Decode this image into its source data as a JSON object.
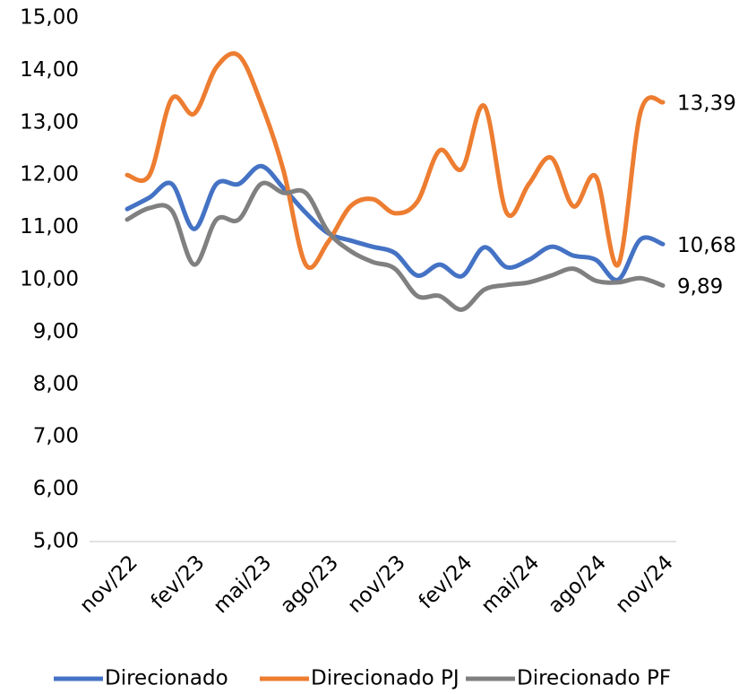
{
  "chart_data": {
    "type": "line",
    "categories": [
      "nov/22",
      null,
      null,
      "fev/23",
      null,
      null,
      "mai/23",
      null,
      null,
      "ago/23",
      null,
      null,
      "nov/23",
      null,
      null,
      "fev/24",
      null,
      null,
      "mai/24",
      null,
      null,
      "ago/24",
      null,
      null,
      "nov/24"
    ],
    "series": [
      {
        "name": "Direcionado",
        "color": "#4472c4",
        "values": [
          11.35,
          11.57,
          11.83,
          10.97,
          11.83,
          11.83,
          12.17,
          11.75,
          11.28,
          10.89,
          10.75,
          10.63,
          10.51,
          10.08,
          10.29,
          10.07,
          10.62,
          10.24,
          10.38,
          10.63,
          10.46,
          10.38,
          10.0,
          10.77,
          10.68
        ],
        "value_labels": [
          null,
          null,
          null,
          null,
          null,
          null,
          null,
          null,
          null,
          null,
          null,
          null,
          null,
          null,
          null,
          null,
          null,
          null,
          null,
          null,
          null,
          null,
          null,
          null,
          "10,68"
        ]
      },
      {
        "name": "Direcionado PJ",
        "color": "#ed7d31",
        "values": [
          12.0,
          12.0,
          13.46,
          13.17,
          14.06,
          14.28,
          13.37,
          12.09,
          10.29,
          10.72,
          11.4,
          11.54,
          11.27,
          11.49,
          12.47,
          12.12,
          13.32,
          11.28,
          11.83,
          12.33,
          11.4,
          11.97,
          10.29,
          13.2,
          13.39
        ],
        "value_labels": [
          null,
          null,
          null,
          null,
          null,
          null,
          null,
          null,
          null,
          null,
          null,
          null,
          null,
          null,
          null,
          null,
          null,
          null,
          null,
          null,
          null,
          null,
          null,
          null,
          "13,39"
        ]
      },
      {
        "name": "Direcionado PF",
        "color": "#808080",
        "values": [
          11.15,
          11.37,
          11.32,
          10.29,
          11.15,
          11.15,
          11.83,
          11.66,
          11.66,
          10.92,
          10.55,
          10.34,
          10.21,
          9.69,
          9.69,
          9.43,
          9.81,
          9.9,
          9.95,
          10.08,
          10.21,
          9.98,
          9.95,
          10.03,
          9.89
        ],
        "value_labels": [
          null,
          null,
          null,
          null,
          null,
          null,
          null,
          null,
          null,
          null,
          null,
          null,
          null,
          null,
          null,
          null,
          null,
          null,
          null,
          null,
          null,
          null,
          null,
          null,
          "9,89"
        ]
      }
    ],
    "ylim": [
      5,
      15
    ],
    "yticks": [
      {
        "value": 5,
        "label": "5,00"
      },
      {
        "value": 6,
        "label": "6,00"
      },
      {
        "value": 7,
        "label": "7,00"
      },
      {
        "value": 8,
        "label": "8,00"
      },
      {
        "value": 9,
        "label": "9,00"
      },
      {
        "value": 10,
        "label": "10,00"
      },
      {
        "value": 11,
        "label": "11,00"
      },
      {
        "value": 12,
        "label": "12,00"
      },
      {
        "value": 13,
        "label": "13,00"
      },
      {
        "value": 14,
        "label": "14,00"
      },
      {
        "value": 15,
        "label": "15,00"
      }
    ],
    "grid": false,
    "legend": "bottom"
  }
}
